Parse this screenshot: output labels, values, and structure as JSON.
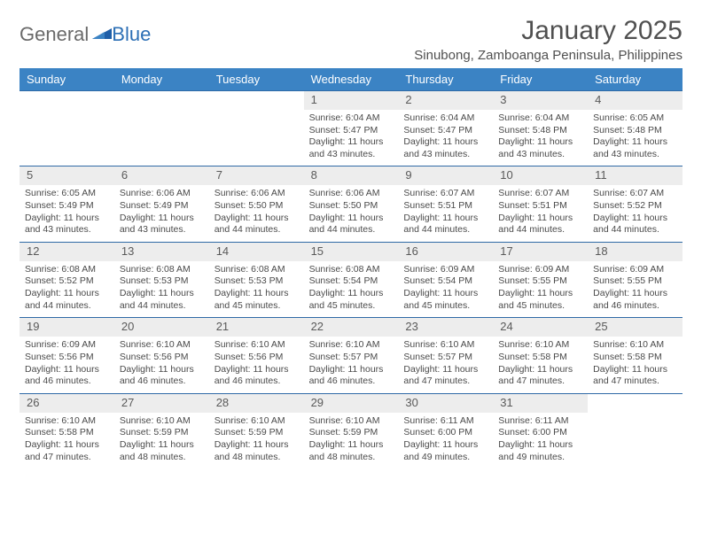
{
  "logo": {
    "text1": "General",
    "text2": "Blue"
  },
  "title": "January 2025",
  "location": "Sinubong, Zamboanga Peninsula, Philippines",
  "colors": {
    "header_bg": "#3b83c4",
    "header_text": "#ffffff",
    "week_border": "#2f6aa6",
    "daynum_bg": "#ededed",
    "body_text": "#4a4a4a",
    "logo_gray": "#6a6a6a",
    "logo_blue": "#2c6fb5",
    "page_bg": "#ffffff"
  },
  "weekdays": [
    "Sunday",
    "Monday",
    "Tuesday",
    "Wednesday",
    "Thursday",
    "Friday",
    "Saturday"
  ],
  "weeks": [
    [
      {
        "empty": true
      },
      {
        "empty": true
      },
      {
        "empty": true
      },
      {
        "day": "1",
        "sunrise": "Sunrise: 6:04 AM",
        "sunset": "Sunset: 5:47 PM",
        "daylight1": "Daylight: 11 hours",
        "daylight2": "and 43 minutes."
      },
      {
        "day": "2",
        "sunrise": "Sunrise: 6:04 AM",
        "sunset": "Sunset: 5:47 PM",
        "daylight1": "Daylight: 11 hours",
        "daylight2": "and 43 minutes."
      },
      {
        "day": "3",
        "sunrise": "Sunrise: 6:04 AM",
        "sunset": "Sunset: 5:48 PM",
        "daylight1": "Daylight: 11 hours",
        "daylight2": "and 43 minutes."
      },
      {
        "day": "4",
        "sunrise": "Sunrise: 6:05 AM",
        "sunset": "Sunset: 5:48 PM",
        "daylight1": "Daylight: 11 hours",
        "daylight2": "and 43 minutes."
      }
    ],
    [
      {
        "day": "5",
        "sunrise": "Sunrise: 6:05 AM",
        "sunset": "Sunset: 5:49 PM",
        "daylight1": "Daylight: 11 hours",
        "daylight2": "and 43 minutes."
      },
      {
        "day": "6",
        "sunrise": "Sunrise: 6:06 AM",
        "sunset": "Sunset: 5:49 PM",
        "daylight1": "Daylight: 11 hours",
        "daylight2": "and 43 minutes."
      },
      {
        "day": "7",
        "sunrise": "Sunrise: 6:06 AM",
        "sunset": "Sunset: 5:50 PM",
        "daylight1": "Daylight: 11 hours",
        "daylight2": "and 44 minutes."
      },
      {
        "day": "8",
        "sunrise": "Sunrise: 6:06 AM",
        "sunset": "Sunset: 5:50 PM",
        "daylight1": "Daylight: 11 hours",
        "daylight2": "and 44 minutes."
      },
      {
        "day": "9",
        "sunrise": "Sunrise: 6:07 AM",
        "sunset": "Sunset: 5:51 PM",
        "daylight1": "Daylight: 11 hours",
        "daylight2": "and 44 minutes."
      },
      {
        "day": "10",
        "sunrise": "Sunrise: 6:07 AM",
        "sunset": "Sunset: 5:51 PM",
        "daylight1": "Daylight: 11 hours",
        "daylight2": "and 44 minutes."
      },
      {
        "day": "11",
        "sunrise": "Sunrise: 6:07 AM",
        "sunset": "Sunset: 5:52 PM",
        "daylight1": "Daylight: 11 hours",
        "daylight2": "and 44 minutes."
      }
    ],
    [
      {
        "day": "12",
        "sunrise": "Sunrise: 6:08 AM",
        "sunset": "Sunset: 5:52 PM",
        "daylight1": "Daylight: 11 hours",
        "daylight2": "and 44 minutes."
      },
      {
        "day": "13",
        "sunrise": "Sunrise: 6:08 AM",
        "sunset": "Sunset: 5:53 PM",
        "daylight1": "Daylight: 11 hours",
        "daylight2": "and 44 minutes."
      },
      {
        "day": "14",
        "sunrise": "Sunrise: 6:08 AM",
        "sunset": "Sunset: 5:53 PM",
        "daylight1": "Daylight: 11 hours",
        "daylight2": "and 45 minutes."
      },
      {
        "day": "15",
        "sunrise": "Sunrise: 6:08 AM",
        "sunset": "Sunset: 5:54 PM",
        "daylight1": "Daylight: 11 hours",
        "daylight2": "and 45 minutes."
      },
      {
        "day": "16",
        "sunrise": "Sunrise: 6:09 AM",
        "sunset": "Sunset: 5:54 PM",
        "daylight1": "Daylight: 11 hours",
        "daylight2": "and 45 minutes."
      },
      {
        "day": "17",
        "sunrise": "Sunrise: 6:09 AM",
        "sunset": "Sunset: 5:55 PM",
        "daylight1": "Daylight: 11 hours",
        "daylight2": "and 45 minutes."
      },
      {
        "day": "18",
        "sunrise": "Sunrise: 6:09 AM",
        "sunset": "Sunset: 5:55 PM",
        "daylight1": "Daylight: 11 hours",
        "daylight2": "and 46 minutes."
      }
    ],
    [
      {
        "day": "19",
        "sunrise": "Sunrise: 6:09 AM",
        "sunset": "Sunset: 5:56 PM",
        "daylight1": "Daylight: 11 hours",
        "daylight2": "and 46 minutes."
      },
      {
        "day": "20",
        "sunrise": "Sunrise: 6:10 AM",
        "sunset": "Sunset: 5:56 PM",
        "daylight1": "Daylight: 11 hours",
        "daylight2": "and 46 minutes."
      },
      {
        "day": "21",
        "sunrise": "Sunrise: 6:10 AM",
        "sunset": "Sunset: 5:56 PM",
        "daylight1": "Daylight: 11 hours",
        "daylight2": "and 46 minutes."
      },
      {
        "day": "22",
        "sunrise": "Sunrise: 6:10 AM",
        "sunset": "Sunset: 5:57 PM",
        "daylight1": "Daylight: 11 hours",
        "daylight2": "and 46 minutes."
      },
      {
        "day": "23",
        "sunrise": "Sunrise: 6:10 AM",
        "sunset": "Sunset: 5:57 PM",
        "daylight1": "Daylight: 11 hours",
        "daylight2": "and 47 minutes."
      },
      {
        "day": "24",
        "sunrise": "Sunrise: 6:10 AM",
        "sunset": "Sunset: 5:58 PM",
        "daylight1": "Daylight: 11 hours",
        "daylight2": "and 47 minutes."
      },
      {
        "day": "25",
        "sunrise": "Sunrise: 6:10 AM",
        "sunset": "Sunset: 5:58 PM",
        "daylight1": "Daylight: 11 hours",
        "daylight2": "and 47 minutes."
      }
    ],
    [
      {
        "day": "26",
        "sunrise": "Sunrise: 6:10 AM",
        "sunset": "Sunset: 5:58 PM",
        "daylight1": "Daylight: 11 hours",
        "daylight2": "and 47 minutes."
      },
      {
        "day": "27",
        "sunrise": "Sunrise: 6:10 AM",
        "sunset": "Sunset: 5:59 PM",
        "daylight1": "Daylight: 11 hours",
        "daylight2": "and 48 minutes."
      },
      {
        "day": "28",
        "sunrise": "Sunrise: 6:10 AM",
        "sunset": "Sunset: 5:59 PM",
        "daylight1": "Daylight: 11 hours",
        "daylight2": "and 48 minutes."
      },
      {
        "day": "29",
        "sunrise": "Sunrise: 6:10 AM",
        "sunset": "Sunset: 5:59 PM",
        "daylight1": "Daylight: 11 hours",
        "daylight2": "and 48 minutes."
      },
      {
        "day": "30",
        "sunrise": "Sunrise: 6:11 AM",
        "sunset": "Sunset: 6:00 PM",
        "daylight1": "Daylight: 11 hours",
        "daylight2": "and 49 minutes."
      },
      {
        "day": "31",
        "sunrise": "Sunrise: 6:11 AM",
        "sunset": "Sunset: 6:00 PM",
        "daylight1": "Daylight: 11 hours",
        "daylight2": "and 49 minutes."
      },
      {
        "empty": true
      }
    ]
  ]
}
